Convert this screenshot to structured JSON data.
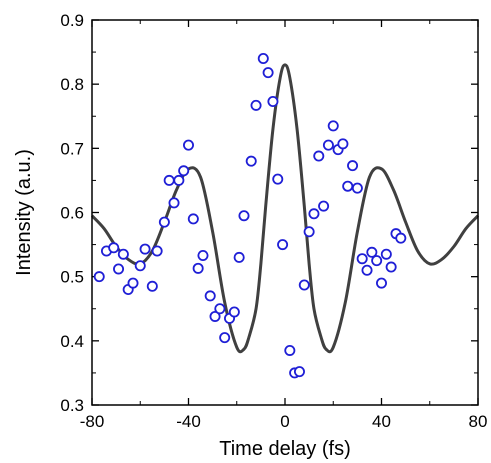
{
  "chart_data": {
    "type": "scatter",
    "title": "",
    "xlabel": "Time delay (fs)",
    "ylabel": "Intensity (a.u.)",
    "xlim": [
      -80,
      80
    ],
    "ylim": [
      0.3,
      0.9
    ],
    "xticks": [
      -80,
      -40,
      0,
      40,
      80
    ],
    "yticks": [
      0.3,
      0.4,
      0.5,
      0.6,
      0.7,
      0.8,
      0.9
    ],
    "xtick_labels": [
      "-80",
      "-40",
      "0",
      "40",
      "80"
    ],
    "ytick_labels": [
      "0.3",
      "0.4",
      "0.5",
      "0.6",
      "0.7",
      "0.8",
      "0.9"
    ],
    "grid": false,
    "legend": "none",
    "series": [
      {
        "kind": "markers",
        "marker": "open-circle",
        "color": "#1f1fd6",
        "points": [
          [
            -77,
            0.5
          ],
          [
            -74,
            0.54
          ],
          [
            -71,
            0.545
          ],
          [
            -69,
            0.512
          ],
          [
            -67,
            0.535
          ],
          [
            -65,
            0.48
          ],
          [
            -63,
            0.49
          ],
          [
            -60,
            0.517
          ],
          [
            -58,
            0.543
          ],
          [
            -55,
            0.485
          ],
          [
            -53,
            0.54
          ],
          [
            -50,
            0.585
          ],
          [
            -48,
            0.65
          ],
          [
            -46,
            0.615
          ],
          [
            -44,
            0.65
          ],
          [
            -42,
            0.665
          ],
          [
            -40,
            0.705
          ],
          [
            -38,
            0.59
          ],
          [
            -36,
            0.513
          ],
          [
            -34,
            0.533
          ],
          [
            -31,
            0.47
          ],
          [
            -29,
            0.438
          ],
          [
            -27,
            0.45
          ],
          [
            -25,
            0.405
          ],
          [
            -23,
            0.435
          ],
          [
            -21,
            0.445
          ],
          [
            -19,
            0.53
          ],
          [
            -17,
            0.595
          ],
          [
            -14,
            0.68
          ],
          [
            -12,
            0.767
          ],
          [
            -9,
            0.84
          ],
          [
            -7,
            0.818
          ],
          [
            -5,
            0.773
          ],
          [
            -3,
            0.652
          ],
          [
            -1,
            0.55
          ],
          [
            2,
            0.385
          ],
          [
            4,
            0.35
          ],
          [
            6,
            0.352
          ],
          [
            8,
            0.487
          ],
          [
            10,
            0.57
          ],
          [
            12,
            0.598
          ],
          [
            14,
            0.688
          ],
          [
            16,
            0.61
          ],
          [
            18,
            0.705
          ],
          [
            20,
            0.735
          ],
          [
            22,
            0.698
          ],
          [
            24,
            0.707
          ],
          [
            26,
            0.641
          ],
          [
            28,
            0.673
          ],
          [
            30,
            0.638
          ],
          [
            32,
            0.528
          ],
          [
            34,
            0.51
          ],
          [
            36,
            0.538
          ],
          [
            38,
            0.525
          ],
          [
            40,
            0.49
          ],
          [
            42,
            0.535
          ],
          [
            44,
            0.515
          ],
          [
            46,
            0.567
          ],
          [
            48,
            0.56
          ]
        ]
      },
      {
        "kind": "fit-line",
        "color": "#404040",
        "points": [
          [
            -80,
            0.595
          ],
          [
            -75,
            0.575
          ],
          [
            -70,
            0.547
          ],
          [
            -65,
            0.527
          ],
          [
            -60,
            0.52
          ],
          [
            -55,
            0.54
          ],
          [
            -50,
            0.585
          ],
          [
            -45,
            0.635
          ],
          [
            -40,
            0.668
          ],
          [
            -35,
            0.655
          ],
          [
            -30,
            0.57
          ],
          [
            -25,
            0.46
          ],
          [
            -20,
            0.39
          ],
          [
            -17,
            0.387
          ],
          [
            -15,
            0.405
          ],
          [
            -12,
            0.45
          ],
          [
            -10,
            0.52
          ],
          [
            -8,
            0.61
          ],
          [
            -5,
            0.73
          ],
          [
            -2,
            0.81
          ],
          [
            0,
            0.83
          ],
          [
            2,
            0.81
          ],
          [
            5,
            0.73
          ],
          [
            8,
            0.61
          ],
          [
            10,
            0.52
          ],
          [
            12,
            0.45
          ],
          [
            15,
            0.405
          ],
          [
            17,
            0.387
          ],
          [
            20,
            0.39
          ],
          [
            25,
            0.46
          ],
          [
            30,
            0.57
          ],
          [
            35,
            0.655
          ],
          [
            40,
            0.668
          ],
          [
            45,
            0.635
          ],
          [
            50,
            0.585
          ],
          [
            55,
            0.54
          ],
          [
            60,
            0.52
          ],
          [
            65,
            0.527
          ],
          [
            70,
            0.547
          ],
          [
            75,
            0.575
          ],
          [
            80,
            0.595
          ]
        ]
      }
    ]
  }
}
